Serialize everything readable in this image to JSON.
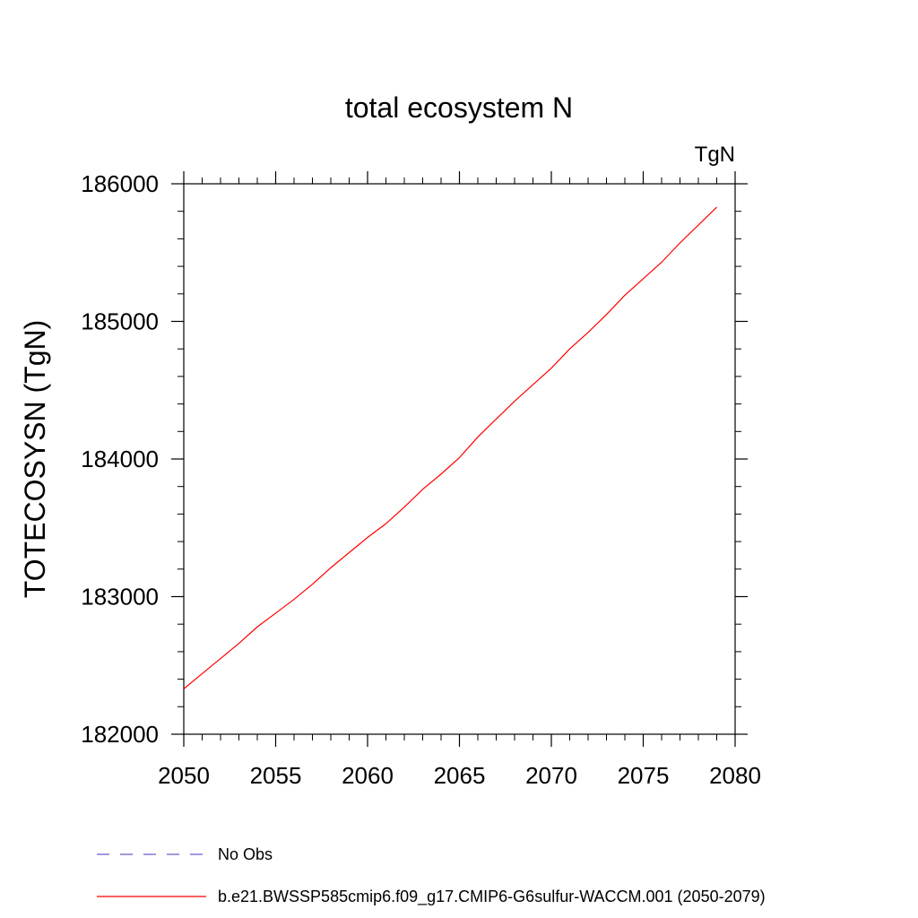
{
  "chart_data": {
    "type": "line",
    "title": "total ecosystem N",
    "units_label": "TgN",
    "xlabel": "",
    "ylabel": "TOTECOSYSN  (TgN)",
    "xlim": [
      2050,
      2080
    ],
    "ylim": [
      182000,
      186000
    ],
    "x_ticks": [
      2050,
      2055,
      2060,
      2065,
      2070,
      2075,
      2080
    ],
    "y_ticks": [
      182000,
      183000,
      184000,
      185000,
      186000
    ],
    "x_tick_labels": [
      "2050",
      "2055",
      "2060",
      "2065",
      "2070",
      "2075",
      "2080"
    ],
    "y_tick_labels": [
      "182000",
      "183000",
      "184000",
      "185000",
      "186000"
    ],
    "grid": false,
    "legend_position": "bottom",
    "series": [
      {
        "name": "No Obs",
        "color": "#6a5acd",
        "style": "dashed",
        "x": [],
        "y": []
      },
      {
        "name": "b.e21.BWSSP585cmip6.f09_g17.CMIP6-G6sulfur-WACCM.001 (2050-2079)",
        "color": "#ff0000",
        "style": "solid",
        "x": [
          2050,
          2051,
          2052,
          2053,
          2054,
          2055,
          2056,
          2057,
          2058,
          2059,
          2060,
          2061,
          2062,
          2063,
          2064,
          2065,
          2066,
          2067,
          2068,
          2069,
          2070,
          2071,
          2072,
          2073,
          2074,
          2075,
          2076,
          2077,
          2078,
          2079
        ],
        "y": [
          182330,
          182440,
          182550,
          182660,
          182780,
          182880,
          182980,
          183090,
          183210,
          183320,
          183430,
          183530,
          183650,
          183780,
          183890,
          184010,
          184160,
          184290,
          184420,
          184540,
          184660,
          184800,
          184920,
          185050,
          185190,
          185310,
          185430,
          185570,
          185700,
          185830
        ]
      }
    ]
  }
}
